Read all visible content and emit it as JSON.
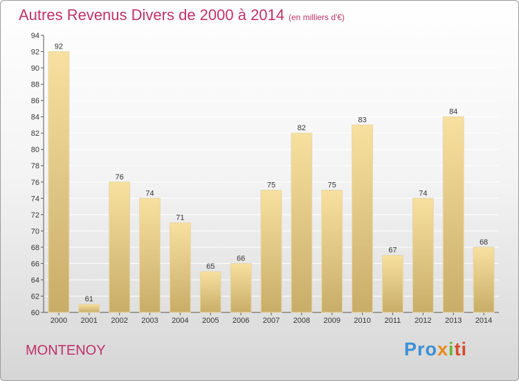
{
  "header": {
    "title": "Autres Revenus Divers de 2000 à 2014",
    "subtitle": "(en milliers d'€)"
  },
  "footer": {
    "commune": "MONTENOY",
    "logo_parts": [
      "Pro",
      "x",
      "i",
      "ti"
    ]
  },
  "colors": {
    "title": "#c0306a",
    "bar_light": "#f8e0a0",
    "bar_dark": "#c8ad68",
    "grid": "#ffffff"
  },
  "chart_data": {
    "type": "bar",
    "title": "Autres Revenus Divers de 2000 à 2014",
    "subtitle": "(en milliers d'€)",
    "categories": [
      "2000",
      "2001",
      "2002",
      "2003",
      "2004",
      "2005",
      "2006",
      "2007",
      "2008",
      "2009",
      "2010",
      "2011",
      "2012",
      "2013",
      "2014"
    ],
    "values": [
      92,
      61,
      76,
      74,
      71,
      65,
      66,
      75,
      82,
      75,
      83,
      67,
      74,
      84,
      68
    ],
    "ylim": [
      60,
      94
    ],
    "yticks": [
      60,
      62,
      64,
      66,
      68,
      70,
      72,
      74,
      76,
      78,
      80,
      82,
      84,
      86,
      88,
      90,
      92,
      94
    ],
    "grid": true,
    "xlabel": "",
    "ylabel": ""
  }
}
